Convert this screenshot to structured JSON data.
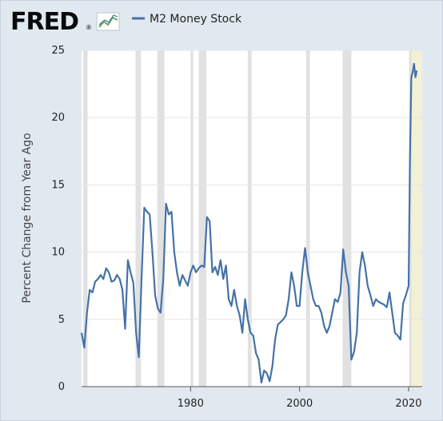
{
  "header": {
    "logo_text": "FRED",
    "logo_mark": "®"
  },
  "colors": {
    "background": "#e1e9f0",
    "plot_background": "#ffffff",
    "series": "#4572a7",
    "recession": "#e1e1e1",
    "grid": "#e6e6e6",
    "forecast_band": "#f2f0d5"
  },
  "chart_data": {
    "type": "line",
    "title": "",
    "xlabel": "",
    "ylabel": "Percent Change from Year Ago",
    "xlim": [
      1960,
      2022.5
    ],
    "ylim": [
      0,
      25
    ],
    "x_ticks": [
      1980,
      2000,
      2020
    ],
    "y_ticks": [
      0,
      5,
      10,
      15,
      20,
      25
    ],
    "grid": "horizontal",
    "legend_position": "top",
    "series": [
      {
        "name": "M2 Money Stock",
        "x": [
          1960.0,
          1960.5,
          1961.0,
          1961.5,
          1962.0,
          1962.5,
          1963.0,
          1963.5,
          1964.0,
          1964.5,
          1965.0,
          1965.5,
          1966.0,
          1966.5,
          1967.0,
          1967.5,
          1968.0,
          1968.5,
          1969.0,
          1969.5,
          1970.0,
          1970.5,
          1971.0,
          1971.5,
          1972.0,
          1972.5,
          1973.0,
          1973.5,
          1974.0,
          1974.5,
          1975.0,
          1975.5,
          1976.0,
          1976.5,
          1977.0,
          1977.5,
          1978.0,
          1978.5,
          1979.0,
          1979.5,
          1980.0,
          1980.5,
          1981.0,
          1981.5,
          1982.0,
          1982.5,
          1983.0,
          1983.5,
          1984.0,
          1984.5,
          1985.0,
          1985.5,
          1986.0,
          1986.5,
          1987.0,
          1987.5,
          1988.0,
          1988.5,
          1989.0,
          1989.5,
          1990.0,
          1990.5,
          1991.0,
          1991.5,
          1992.0,
          1992.5,
          1993.0,
          1993.5,
          1994.0,
          1994.5,
          1995.0,
          1995.5,
          1996.0,
          1996.5,
          1997.0,
          1997.5,
          1998.0,
          1998.5,
          1999.0,
          1999.5,
          2000.0,
          2000.5,
          2001.0,
          2001.5,
          2002.0,
          2002.5,
          2003.0,
          2003.5,
          2004.0,
          2004.5,
          2005.0,
          2005.5,
          2006.0,
          2006.5,
          2007.0,
          2007.5,
          2008.0,
          2008.5,
          2009.0,
          2009.5,
          2010.0,
          2010.5,
          2011.0,
          2011.5,
          2012.0,
          2012.5,
          2013.0,
          2013.5,
          2014.0,
          2014.5,
          2015.0,
          2015.5,
          2016.0,
          2016.5,
          2017.0,
          2017.5,
          2018.0,
          2018.5,
          2019.0,
          2019.5,
          2020.0,
          2020.25,
          2020.5,
          2020.75,
          2021.0,
          2021.25,
          2021.5
        ],
        "values": [
          4.0,
          2.9,
          5.5,
          7.2,
          7.0,
          7.8,
          8.0,
          8.3,
          8.0,
          8.8,
          8.5,
          7.8,
          7.9,
          8.3,
          8.0,
          7.2,
          4.3,
          9.4,
          8.5,
          7.7,
          4.0,
          2.2,
          8.0,
          13.3,
          13.0,
          12.8,
          10.0,
          6.8,
          5.8,
          5.5,
          8.0,
          13.6,
          12.8,
          13.0,
          10.0,
          8.5,
          7.5,
          8.3,
          7.9,
          7.5,
          8.5,
          9.0,
          8.5,
          8.8,
          9.0,
          8.9,
          12.6,
          12.3,
          8.5,
          8.9,
          8.3,
          9.4,
          8.0,
          9.0,
          6.5,
          6.0,
          7.2,
          6.0,
          5.3,
          4.0,
          6.5,
          5.0,
          4.0,
          3.8,
          2.5,
          2.0,
          0.3,
          1.2,
          1.0,
          0.4,
          1.5,
          3.5,
          4.6,
          4.8,
          5.0,
          5.3,
          6.5,
          8.5,
          7.5,
          6.0,
          6.0,
          8.5,
          10.3,
          8.5,
          7.5,
          6.5,
          6.0,
          6.0,
          5.5,
          4.5,
          4.0,
          4.5,
          5.5,
          6.5,
          6.3,
          7.0,
          10.2,
          8.5,
          7.5,
          2.0,
          2.6,
          4.0,
          8.5,
          10.0,
          9.0,
          7.5,
          6.8,
          6.0,
          6.5,
          6.3,
          6.2,
          6.1,
          5.9,
          7.0,
          5.5,
          4.0,
          3.8,
          3.5,
          6.2,
          6.8,
          7.5,
          17.0,
          23.0,
          23.4,
          24.0,
          23.0,
          23.5
        ]
      }
    ],
    "recessions": [
      [
        1960.3,
        1961.1
      ],
      [
        1969.9,
        1970.9
      ],
      [
        1973.9,
        1975.2
      ],
      [
        1980.0,
        1980.5
      ],
      [
        1981.5,
        1982.9
      ],
      [
        1990.5,
        1991.2
      ],
      [
        2001.2,
        2001.9
      ],
      [
        2007.9,
        2009.5
      ],
      [
        2020.1,
        2020.4
      ]
    ],
    "forecast_band": [
      2020.4,
      2022.5
    ]
  }
}
